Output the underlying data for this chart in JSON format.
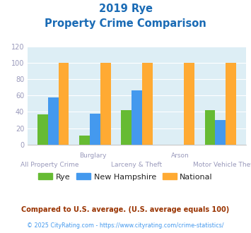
{
  "title_line1": "2019 Rye",
  "title_line2": "Property Crime Comparison",
  "categories": [
    "All Property Crime",
    "Burglary",
    "Larceny & Theft",
    "Arson",
    "Motor Vehicle Theft"
  ],
  "top_labels": [
    "",
    "Burglary",
    "",
    "Arson",
    ""
  ],
  "bottom_labels": [
    "All Property Crime",
    "",
    "Larceny & Theft",
    "",
    "Motor Vehicle Theft"
  ],
  "rye_values": [
    37,
    11,
    42,
    0,
    42
  ],
  "nh_values": [
    58,
    38,
    66,
    0,
    30
  ],
  "national_values": [
    100,
    100,
    100,
    100,
    100
  ],
  "rye_color": "#66bb33",
  "nh_color": "#4499ee",
  "national_color": "#ffaa33",
  "title_color": "#1a6bb5",
  "bg_color": "#ddeef5",
  "ylim": [
    0,
    120
  ],
  "yticks": [
    0,
    20,
    40,
    60,
    80,
    100,
    120
  ],
  "footnote1": "Compared to U.S. average. (U.S. average equals 100)",
  "footnote2": "© 2025 CityRating.com - https://www.cityrating.com/crime-statistics/",
  "footnote1_color": "#993300",
  "footnote2_color": "#4499ee",
  "grid_color": "#ffffff",
  "tick_color": "#9999bb",
  "legend_labels": [
    "Rye",
    "New Hampshire",
    "National"
  ]
}
